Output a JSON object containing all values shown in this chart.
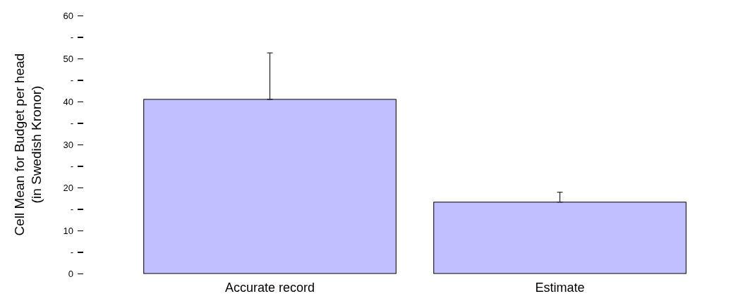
{
  "chart_data": {
    "type": "bar",
    "ylabel": "Cell Mean for Budget per head\n(in Swedish Kronor)",
    "categories": [
      "Accurate record",
      "Estimate"
    ],
    "values": [
      40.5,
      16.6
    ],
    "errors": [
      [
        40.5,
        51.3
      ],
      [
        16.6,
        18.9
      ]
    ],
    "color": "#c0c0ff",
    "ylim": [
      0,
      60
    ],
    "yticks": [
      0,
      {
        "value": 5,
        "label": "-"
      },
      10,
      {
        "value": 15,
        "label": "-"
      },
      20,
      {
        "value": 25,
        "label": "-"
      },
      30,
      {
        "value": 35,
        "label": "-"
      },
      40,
      {
        "value": 45,
        "label": "-"
      },
      50,
      {
        "value": 55,
        "label": "-"
      },
      60
    ],
    "grid": false,
    "legend": false
  }
}
